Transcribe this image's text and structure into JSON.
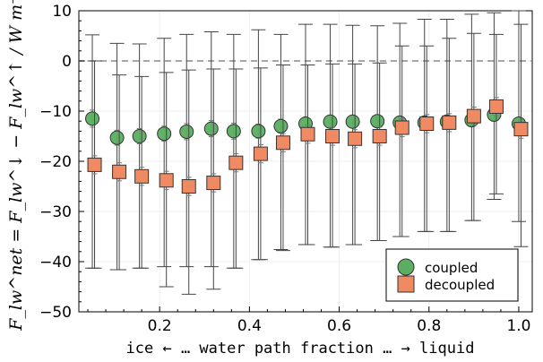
{
  "chart_data": {
    "type": "scatter",
    "title": "",
    "xlabel": "ice ← … water path fraction … → liquid",
    "ylabel": "F_lw^net = F_lw^↓ − F_lw^↑ / W m⁻²",
    "xlim": [
      0.02,
      1.03
    ],
    "ylim": [
      -50,
      10
    ],
    "xticks": [
      0.2,
      0.4,
      0.6,
      0.8,
      1.0
    ],
    "xtick_labels": [
      "0.2",
      "0.4",
      "0.6",
      "0.8",
      "1.0"
    ],
    "yticks": [
      -50,
      -40,
      -30,
      -20,
      -10,
      0,
      10
    ],
    "ytick_labels": [
      "−50",
      "−40",
      "−30",
      "−20",
      "−10",
      "0",
      "10"
    ],
    "reference_line": 0,
    "grid": true,
    "legend_position": "bottom-right",
    "series": [
      {
        "name": "coupled",
        "marker": "circle",
        "color": "#5aae61",
        "x": [
          0.05,
          0.105,
          0.155,
          0.21,
          0.26,
          0.315,
          0.365,
          0.42,
          0.47,
          0.525,
          0.58,
          0.63,
          0.685,
          0.735,
          0.79,
          0.84,
          0.895,
          0.945,
          1.0
        ],
        "y": [
          -11.5,
          -15.3,
          -15.0,
          -14.5,
          -14.1,
          -13.5,
          -14.0,
          -14.0,
          -13.0,
          -12.5,
          -12.1,
          -12.1,
          -12.0,
          -12.3,
          -12.3,
          -12.1,
          -11.8,
          -10.7,
          -12.5
        ],
        "err_low": [
          -41.3,
          -41.6,
          -41.3,
          -41.0,
          -41.0,
          -41.0,
          -41.3,
          -39.6,
          -37.6,
          -36.6,
          -37.1,
          -36.6,
          -35.8,
          -35.0,
          -34.0,
          -34.0,
          -31.8,
          -27.6,
          -32.0
        ],
        "err_high": [
          5.2,
          3.5,
          3.4,
          4.5,
          5.3,
          5.8,
          5.3,
          6.2,
          5.3,
          7.3,
          7.3,
          7.1,
          7.0,
          7.5,
          8.3,
          8.3,
          9.3,
          9.6,
          10.0
        ],
        "minor_err_low": [
          -13.2,
          -16.8,
          -16.5,
          -16.0,
          -15.7,
          -15.1,
          -15.6,
          -15.4,
          -14.4,
          -13.8,
          -13.3,
          -13.3,
          -13.1,
          -13.4,
          -13.4,
          -13.2,
          -12.9,
          -11.9,
          -13.7
        ],
        "minor_err_high": [
          -9.8,
          -13.8,
          -13.5,
          -13.0,
          -12.5,
          -11.9,
          -12.4,
          -12.6,
          -11.6,
          -11.2,
          -10.9,
          -10.9,
          -10.9,
          -11.2,
          -11.2,
          -11.0,
          -10.7,
          -9.5,
          -11.3
        ]
      },
      {
        "name": "decoupled",
        "marker": "square",
        "color": "#ef8a62",
        "x": [
          0.055,
          0.11,
          0.16,
          0.215,
          0.265,
          0.32,
          0.37,
          0.425,
          0.475,
          0.53,
          0.585,
          0.635,
          0.69,
          0.74,
          0.795,
          0.845,
          0.9,
          0.95,
          1.005
        ],
        "y": [
          -20.7,
          -22.1,
          -23.0,
          -23.8,
          -25.0,
          -24.3,
          -20.3,
          -18.5,
          -16.3,
          -14.6,
          -15.0,
          -15.5,
          -15.0,
          -13.3,
          -12.5,
          -12.3,
          -11.0,
          -9.1,
          -13.6
        ],
        "err_low": [
          -41.3,
          -41.6,
          -41.3,
          -45.0,
          -46.5,
          -45.5,
          -41.3,
          -39.6,
          -37.8,
          -36.6,
          -37.1,
          -36.6,
          -35.8,
          -35.0,
          -34.0,
          -34.0,
          -31.8,
          -26.5,
          -37.0
        ],
        "err_high": [
          0.0,
          -2.8,
          -3.1,
          -2.3,
          -1.8,
          -1.6,
          -1.6,
          -1.4,
          -0.8,
          -0.8,
          -0.6,
          -0.6,
          -0.4,
          3.0,
          3.0,
          4.5,
          5.5,
          5.3,
          7.3
        ],
        "minor_err_low": [
          -22.5,
          -23.9,
          -24.8,
          -25.6,
          -26.8,
          -26.1,
          -22.1,
          -20.3,
          -18.1,
          -16.4,
          -16.8,
          -17.3,
          -16.8,
          -15.1,
          -14.3,
          -14.1,
          -12.8,
          -10.9,
          -15.4
        ],
        "minor_err_high": [
          -18.9,
          -20.3,
          -21.2,
          -22.0,
          -23.2,
          -22.5,
          -18.5,
          -16.7,
          -14.5,
          -12.8,
          -13.2,
          -13.7,
          -13.2,
          -11.5,
          -10.7,
          -10.5,
          -9.2,
          -7.3,
          -11.8
        ]
      }
    ]
  }
}
